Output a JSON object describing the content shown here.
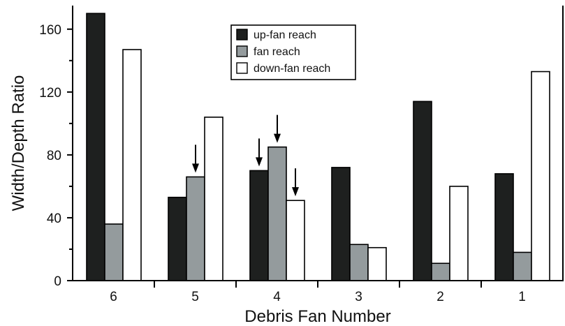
{
  "chart_data": {
    "type": "bar",
    "title": "",
    "xlabel": "Debris Fan Number",
    "ylabel": "Width/Depth Ratio",
    "categories": [
      "6",
      "5",
      "4",
      "3",
      "2",
      "1"
    ],
    "series": [
      {
        "name": "up-fan reach",
        "color": "#1e201f",
        "values": [
          170,
          53,
          70,
          72,
          114,
          68
        ]
      },
      {
        "name": "fan reach",
        "color": "#949b9d",
        "values": [
          36,
          66,
          85,
          23,
          11,
          18
        ]
      },
      {
        "name": "down-fan reach",
        "color": "#ffffff",
        "values": [
          147,
          104,
          51,
          21,
          60,
          133
        ]
      }
    ],
    "ylim": [
      0,
      175
    ],
    "yticks": [
      0,
      40,
      80,
      120,
      160
    ],
    "legend": "top-center",
    "grid": false,
    "annotations": [
      {
        "type": "arrow",
        "category": "5",
        "series": "fan reach"
      },
      {
        "type": "arrow",
        "category": "4",
        "series": "up-fan reach"
      },
      {
        "type": "arrow",
        "category": "4",
        "series": "fan reach"
      },
      {
        "type": "arrow",
        "category": "4",
        "series": "down-fan reach"
      }
    ]
  }
}
